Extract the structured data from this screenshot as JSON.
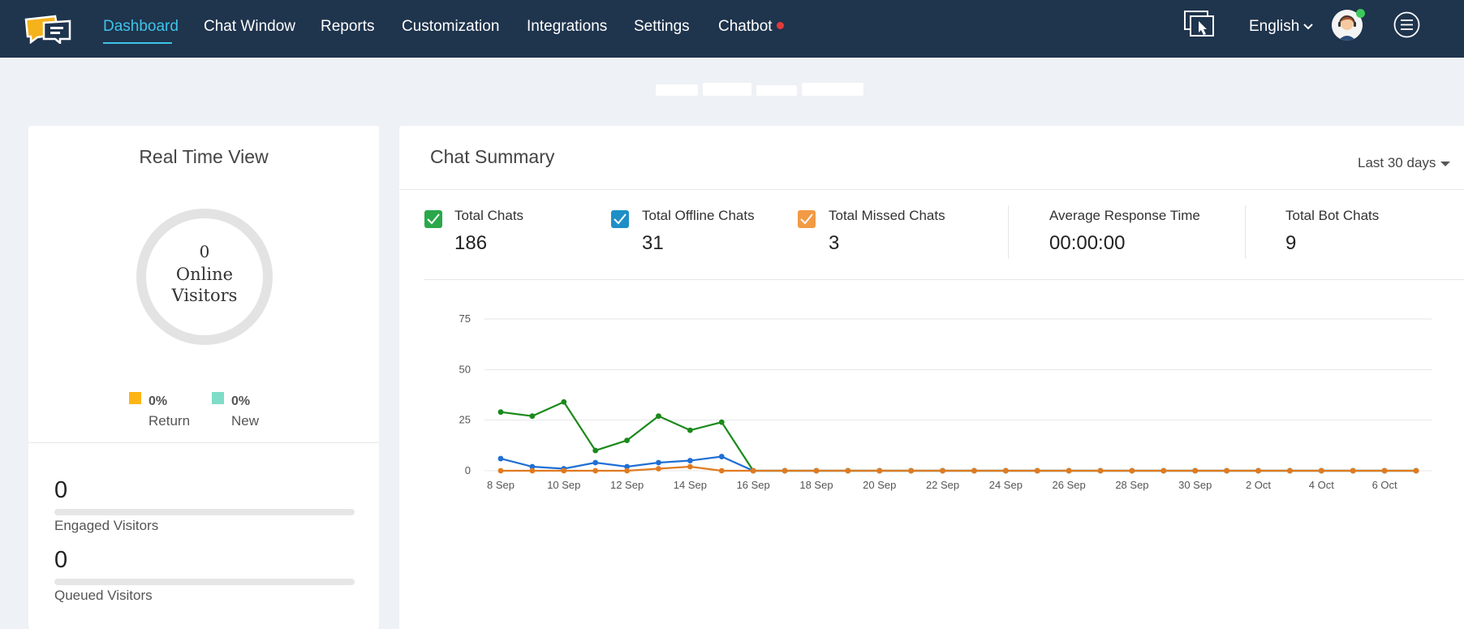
{
  "nav": {
    "items": [
      "Dashboard",
      "Chat Window",
      "Reports",
      "Customization",
      "Integrations",
      "Settings",
      "Chatbot"
    ],
    "active": "Dashboard",
    "language": "English",
    "icons": {
      "logo": "chat-bubbles-logo",
      "cobrowse": "cobrowse-pointer-icon",
      "menu": "hamburger-menu-icon",
      "notification_dot": "#e23a3a"
    }
  },
  "realtime": {
    "title": "Real Time View",
    "online_count": "0",
    "online_label": [
      "Online",
      "Visitors"
    ],
    "legend": [
      {
        "pct": "0%",
        "label": "Return",
        "color": "#fdb515"
      },
      {
        "pct": "0%",
        "label": "New",
        "color": "#7fdcc7"
      }
    ],
    "engaged_value": "0",
    "engaged_label": "Engaged Visitors",
    "queued_value": "0",
    "queued_label": "Queued Visitors"
  },
  "summary": {
    "title": "Chat Summary",
    "range": "Last 30 days",
    "stats": [
      {
        "label": "Total Chats",
        "value": "186",
        "check_color": "#2aa84a"
      },
      {
        "label": "Total Offline Chats",
        "value": "31",
        "check_color": "#1e8fc6"
      },
      {
        "label": "Total Missed Chats",
        "value": "3",
        "check_color": "#f29a45"
      },
      {
        "label": "Average Response Time",
        "value": "00:00:00"
      },
      {
        "label": "Total Bot Chats",
        "value": "9"
      }
    ]
  },
  "chart_data": {
    "type": "line",
    "x": [
      "8 Sep",
      "9 Sep",
      "10 Sep",
      "11 Sep",
      "12 Sep",
      "13 Sep",
      "14 Sep",
      "15 Sep",
      "16 Sep",
      "17 Sep",
      "18 Sep",
      "19 Sep",
      "20 Sep",
      "21 Sep",
      "22 Sep",
      "23 Sep",
      "24 Sep",
      "25 Sep",
      "26 Sep",
      "27 Sep",
      "28 Sep",
      "29 Sep",
      "30 Sep",
      "1 Oct",
      "2 Oct",
      "3 Oct",
      "4 Oct",
      "5 Oct",
      "6 Oct",
      "7 Oct"
    ],
    "xtick_labels": [
      "8 Sep",
      "10 Sep",
      "12 Sep",
      "14 Sep",
      "16 Sep",
      "18 Sep",
      "20 Sep",
      "22 Sep",
      "24 Sep",
      "26 Sep",
      "28 Sep",
      "30 Sep",
      "2 Oct",
      "4 Oct",
      "6 Oct"
    ],
    "yticks": [
      0,
      25,
      50,
      75
    ],
    "ylim": [
      0,
      75
    ],
    "grid": true,
    "series": [
      {
        "color": "#1a8a1a",
        "values": [
          29,
          27,
          34,
          10,
          15,
          27,
          20,
          24,
          0,
          0,
          0,
          0,
          0,
          0,
          0,
          0,
          0,
          0,
          0,
          0,
          0,
          0,
          0,
          0,
          0,
          0,
          0,
          0,
          0,
          0
        ]
      },
      {
        "color": "#1f6fd4",
        "values": [
          6,
          2,
          1,
          4,
          2,
          4,
          5,
          7,
          0,
          0,
          0,
          0,
          0,
          0,
          0,
          0,
          0,
          0,
          0,
          0,
          0,
          0,
          0,
          0,
          0,
          0,
          0,
          0,
          0,
          0
        ]
      },
      {
        "color": "#e07b20",
        "values": [
          0,
          0,
          0,
          0,
          0,
          1,
          2,
          0,
          0,
          0,
          0,
          0,
          0,
          0,
          0,
          0,
          0,
          0,
          0,
          0,
          0,
          0,
          0,
          0,
          0,
          0,
          0,
          0,
          0,
          0
        ]
      }
    ]
  }
}
